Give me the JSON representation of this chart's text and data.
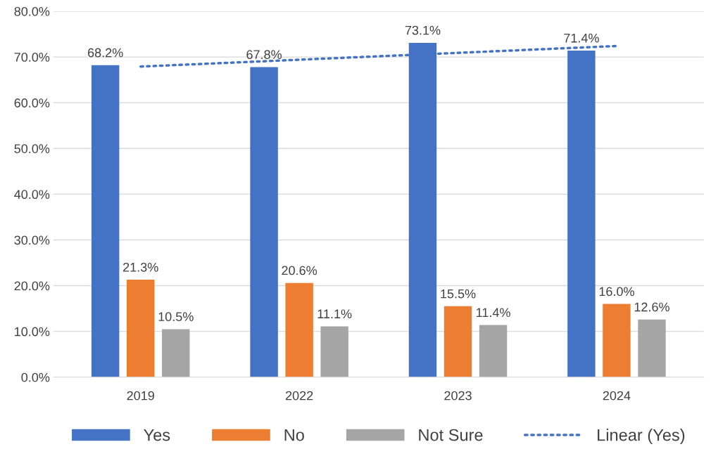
{
  "chart_data": {
    "type": "bar",
    "categories": [
      "2019",
      "2022",
      "2023",
      "2024"
    ],
    "series": [
      {
        "name": "Yes",
        "color": "#4472c4",
        "values": [
          68.2,
          67.8,
          73.1,
          71.4
        ],
        "value_labels": [
          "68.2%",
          "67.8%",
          "73.1%",
          "71.4%"
        ]
      },
      {
        "name": "No",
        "color": "#ed7d31",
        "values": [
          21.3,
          20.6,
          15.5,
          16.0
        ],
        "value_labels": [
          "21.3%",
          "20.6%",
          "15.5%",
          "16.0%"
        ]
      },
      {
        "name": "Not Sure",
        "color": "#a5a5a5",
        "values": [
          10.5,
          11.1,
          11.4,
          12.6
        ],
        "value_labels": [
          "10.5%",
          "11.1%",
          "11.4%",
          "12.6%"
        ]
      },
      {
        "name": "Linear (Yes)",
        "type": "line",
        "color": "#4472c4",
        "line_style": "dotted",
        "values": [
          67.9,
          69.4,
          70.9,
          72.4
        ]
      }
    ],
    "ylim": [
      0,
      80
    ],
    "yticks": [
      {
        "value": 0,
        "label": "0.0%"
      },
      {
        "value": 10,
        "label": "10.0%"
      },
      {
        "value": 20,
        "label": "20.0%"
      },
      {
        "value": 30,
        "label": "30.0%"
      },
      {
        "value": 40,
        "label": "40.0%"
      },
      {
        "value": 50,
        "label": "50.0%"
      },
      {
        "value": 60,
        "label": "60.0%"
      },
      {
        "value": 70,
        "label": "70.0%"
      },
      {
        "value": 80,
        "label": "80.0%"
      }
    ],
    "grid": "y",
    "legend": "bottom"
  }
}
